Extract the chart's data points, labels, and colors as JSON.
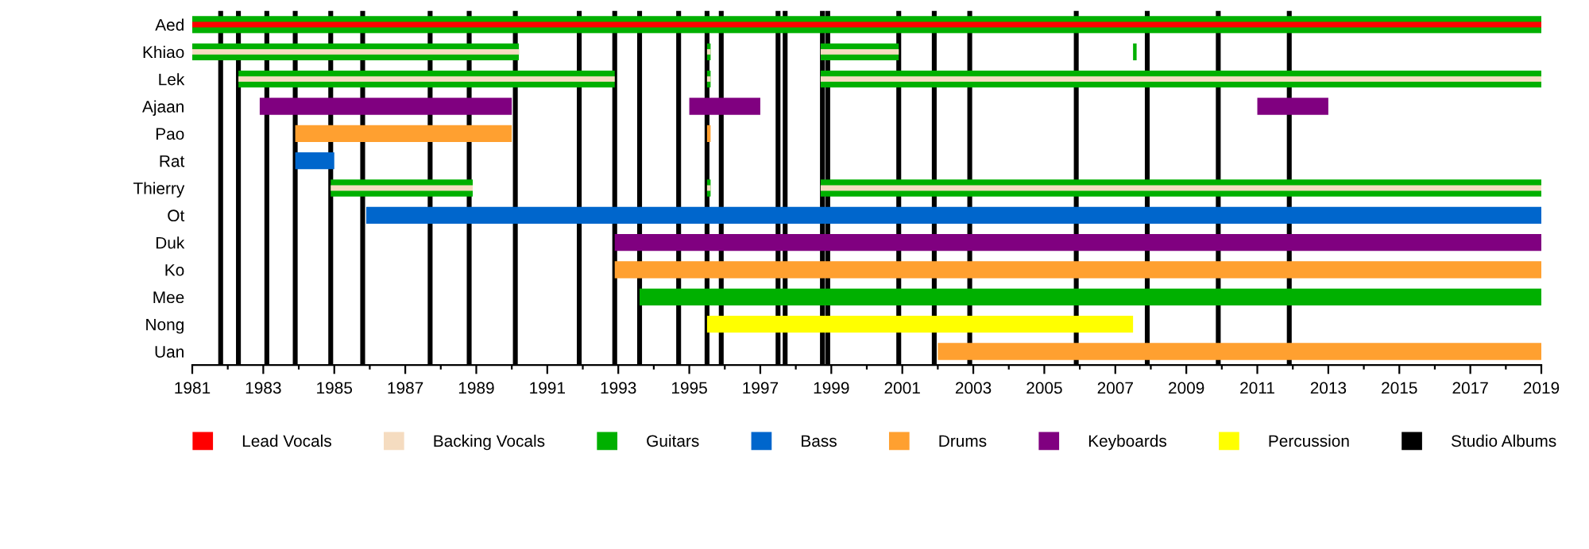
{
  "chart_data": {
    "type": "bar",
    "orientation": "horizontal",
    "categories": [
      "Aed",
      "Khiao",
      "Lek",
      "Ajaan",
      "Pao",
      "Rat",
      "Thierry",
      "Ot",
      "Duk",
      "Ko",
      "Mee",
      "Nong",
      "Uan"
    ],
    "series": [
      {
        "name": "Lead Vocals",
        "color": "#ff0000",
        "base": [
          1981,
          null,
          null,
          null,
          null,
          null,
          null,
          null,
          null,
          null,
          null,
          null,
          null
        ],
        "values": [
          38,
          null,
          null,
          null,
          null,
          null,
          null,
          null,
          null,
          null,
          null,
          null,
          null
        ]
      },
      {
        "name": "Backing Vocals",
        "color": "#f5dcc0",
        "base": [
          null,
          1981,
          1982.3,
          null,
          null,
          null,
          1984.9,
          null,
          null,
          null,
          null,
          null,
          null
        ],
        "values": [
          null,
          9.2,
          10.6,
          null,
          null,
          null,
          4,
          null,
          null,
          null,
          null,
          null,
          null
        ]
      },
      {
        "color": "#f5dcc0",
        "base": [
          null,
          1995.5,
          1995.5,
          null,
          null,
          null,
          1995.5,
          null,
          null,
          null,
          null,
          null,
          null
        ],
        "values": [
          null,
          0.1,
          0.1,
          null,
          null,
          null,
          0.1,
          null,
          null,
          null,
          null,
          null,
          null
        ]
      },
      {
        "color": "#f5dcc0",
        "base": [
          null,
          1998.7,
          1998.7,
          null,
          null,
          null,
          1998.7,
          null,
          null,
          null,
          null,
          null,
          null
        ],
        "values": [
          null,
          2.2,
          20.3,
          null,
          null,
          null,
          20.3,
          null,
          null,
          null,
          null,
          null,
          null
        ]
      },
      {
        "name": "Guitars",
        "color": "#00b000",
        "base": [
          1981,
          1981,
          1982.3,
          null,
          null,
          null,
          1984.9,
          null,
          null,
          null,
          1993.6,
          null,
          null
        ],
        "values": [
          38,
          9.2,
          10.6,
          null,
          null,
          null,
          4,
          null,
          null,
          null,
          25.4,
          null,
          null
        ]
      },
      {
        "color": "#00b000",
        "base": [
          null,
          1995.5,
          1995.5,
          null,
          null,
          null,
          1995.5,
          null,
          null,
          null,
          null,
          null,
          null
        ],
        "values": [
          null,
          0.1,
          0.1,
          null,
          null,
          null,
          0.1,
          null,
          null,
          null,
          null,
          null,
          null
        ]
      },
      {
        "color": "#00b000",
        "base": [
          null,
          1998.7,
          1998.7,
          null,
          null,
          null,
          1998.7,
          null,
          null,
          null,
          null,
          null,
          null
        ],
        "values": [
          null,
          2.2,
          20.3,
          null,
          null,
          null,
          20.3,
          null,
          null,
          null,
          null,
          null,
          null
        ]
      },
      {
        "color": "#00b000",
        "base": [
          null,
          2007.5,
          null,
          null,
          null,
          null,
          null,
          null,
          null,
          null,
          null,
          null,
          null
        ],
        "values": [
          null,
          0.1,
          null,
          null,
          null,
          null,
          null,
          null,
          null,
          null,
          null,
          null,
          null
        ]
      },
      {
        "name": "Bass",
        "color": "#0066cc",
        "base": [
          null,
          null,
          null,
          null,
          null,
          1983.9,
          null,
          1985.9,
          null,
          null,
          null,
          null,
          null
        ],
        "values": [
          null,
          null,
          null,
          null,
          null,
          1.1,
          null,
          33.1,
          null,
          null,
          null,
          null,
          null
        ]
      },
      {
        "name": "Drums",
        "color": "#ffa030",
        "base": [
          null,
          null,
          null,
          null,
          1983.9,
          null,
          null,
          null,
          null,
          1992.9,
          null,
          null,
          2002
        ],
        "values": [
          null,
          null,
          null,
          null,
          6.1,
          null,
          null,
          null,
          null,
          26.1,
          null,
          null,
          17
        ]
      },
      {
        "color": "#ffa030",
        "base": [
          null,
          null,
          null,
          null,
          1995.5,
          null,
          null,
          null,
          null,
          null,
          null,
          null,
          null
        ],
        "values": [
          null,
          null,
          null,
          null,
          0.1,
          null,
          null,
          null,
          null,
          null,
          null,
          null,
          null
        ]
      },
      {
        "name": "Keyboards",
        "color": "#800080",
        "base": [
          null,
          null,
          null,
          1982.9,
          null,
          null,
          null,
          null,
          1992.9,
          null,
          null,
          null,
          null
        ],
        "values": [
          null,
          null,
          null,
          7.1,
          null,
          null,
          null,
          null,
          26.1,
          null,
          null,
          null,
          null
        ]
      },
      {
        "color": "#800080",
        "base": [
          null,
          null,
          null,
          1995,
          null,
          null,
          null,
          null,
          null,
          null,
          null,
          null,
          null
        ],
        "values": [
          null,
          null,
          null,
          2,
          null,
          null,
          null,
          null,
          null,
          null,
          null,
          null,
          null
        ]
      },
      {
        "color": "#800080",
        "base": [
          null,
          null,
          null,
          2011,
          null,
          null,
          null,
          null,
          null,
          null,
          null,
          null,
          null
        ],
        "values": [
          null,
          null,
          null,
          2,
          null,
          null,
          null,
          null,
          null,
          null,
          null,
          null,
          null
        ]
      },
      {
        "name": "Percussion",
        "color": "#ffff00",
        "base": [
          null,
          null,
          null,
          null,
          null,
          null,
          null,
          null,
          null,
          null,
          null,
          1995.5,
          null
        ],
        "values": [
          null,
          null,
          null,
          null,
          null,
          null,
          null,
          null,
          null,
          null,
          null,
          12,
          null
        ]
      }
    ],
    "ref_lines": [
      {
        "axis": "x",
        "value": 1981.8,
        "label": "Studio Albums",
        "color": "#000000"
      },
      {
        "axis": "x",
        "value": 1982.3,
        "color": "#000000"
      },
      {
        "axis": "x",
        "value": 1983.1,
        "color": "#000000"
      },
      {
        "axis": "x",
        "value": 1983.9,
        "color": "#000000"
      },
      {
        "axis": "x",
        "value": 1984.9,
        "color": "#000000"
      },
      {
        "axis": "x",
        "value": 1985.8,
        "color": "#000000"
      },
      {
        "axis": "x",
        "value": 1987.7,
        "color": "#000000"
      },
      {
        "axis": "x",
        "value": 1988.8,
        "color": "#000000"
      },
      {
        "axis": "x",
        "value": 1990.1,
        "color": "#000000"
      },
      {
        "axis": "x",
        "value": 1991.9,
        "color": "#000000"
      },
      {
        "axis": "x",
        "value": 1992.9,
        "color": "#000000"
      },
      {
        "axis": "x",
        "value": 1993.6,
        "color": "#000000"
      },
      {
        "axis": "x",
        "value": 1994.7,
        "color": "#000000"
      },
      {
        "axis": "x",
        "value": 1995.5,
        "color": "#000000"
      },
      {
        "axis": "x",
        "value": 1995.9,
        "color": "#000000"
      },
      {
        "axis": "x",
        "value": 1997.5,
        "color": "#000000"
      },
      {
        "axis": "x",
        "value": 1997.7,
        "color": "#000000"
      },
      {
        "axis": "x",
        "value": 1998.75,
        "color": "#000000"
      },
      {
        "axis": "x",
        "value": 1998.9,
        "color": "#000000"
      },
      {
        "axis": "x",
        "value": 2000.9,
        "color": "#000000"
      },
      {
        "axis": "x",
        "value": 2001.9,
        "color": "#000000"
      },
      {
        "axis": "x",
        "value": 2002.9,
        "color": "#000000"
      },
      {
        "axis": "x",
        "value": 2005.9,
        "color": "#000000"
      },
      {
        "axis": "x",
        "value": 2007.9,
        "color": "#000000"
      },
      {
        "axis": "x",
        "value": 2009.9,
        "color": "#000000"
      },
      {
        "axis": "x",
        "value": 2011.9,
        "color": "#000000"
      }
    ],
    "xlim": [
      1981,
      2019
    ],
    "xticks": [
      1981,
      {
        "value": 1982,
        "label": null
      },
      1983,
      {
        "value": 1984,
        "label": null
      },
      1985,
      {
        "value": 1986,
        "label": null
      },
      1987,
      {
        "value": 1988,
        "label": null
      },
      1989,
      {
        "value": 1990,
        "label": null
      },
      1991,
      {
        "value": 1992,
        "label": null
      },
      1993,
      {
        "value": 1994,
        "label": null
      },
      1995,
      {
        "value": 1996,
        "label": null
      },
      1997,
      {
        "value": 1998,
        "label": null
      },
      1999,
      {
        "value": 2000,
        "label": null
      },
      2001,
      {
        "value": 2002,
        "label": null
      },
      2003,
      {
        "value": 2004,
        "label": null
      },
      2005,
      {
        "value": 2006,
        "label": null
      },
      2007,
      {
        "value": 2008,
        "label": null
      },
      2009,
      {
        "value": 2010,
        "label": null
      },
      2011,
      {
        "value": 2012,
        "label": null
      },
      2013,
      {
        "value": 2014,
        "label": null
      },
      2015,
      {
        "value": 2016,
        "label": null
      },
      2017,
      {
        "value": 2018,
        "label": null
      },
      2019
    ],
    "legend": "bottom"
  }
}
